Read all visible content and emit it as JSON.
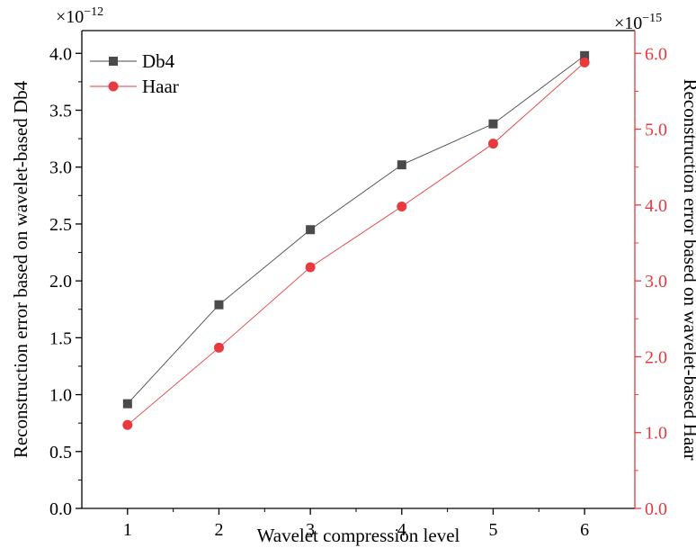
{
  "chart_data": {
    "type": "line",
    "x": [
      1,
      2,
      3,
      4,
      5,
      6
    ],
    "xlabel": "Wavelet compression level",
    "ylabel_left": "Reconstruction error based on wavelet-based Db4",
    "ylabel_right": "Reconstruction error based on wavelet-based Haar",
    "left_axis": {
      "multiplier_base": "×10",
      "multiplier_exp": "−12",
      "ylim": [
        0,
        4.2
      ],
      "ticks": [
        "0.0",
        "0.5",
        "1.0",
        "1.5",
        "2.0",
        "2.5",
        "3.0",
        "3.5",
        "4.0"
      ],
      "tick_values": [
        0,
        0.5,
        1.0,
        1.5,
        2.0,
        2.5,
        3.0,
        3.5,
        4.0
      ]
    },
    "right_axis": {
      "multiplier_base": "×10",
      "multiplier_exp": "−15",
      "ylim": [
        0,
        6.3
      ],
      "ticks": [
        "0.0",
        "1.0",
        "2.0",
        "3.0",
        "4.0",
        "5.0",
        "6.0"
      ],
      "tick_values": [
        0,
        1.0,
        2.0,
        3.0,
        4.0,
        5.0,
        6.0
      ],
      "color": "#e8393e"
    },
    "xlim": [
      0.5,
      6.55
    ],
    "x_ticks": [
      "1",
      "2",
      "3",
      "4",
      "5",
      "6"
    ],
    "series": [
      {
        "name": "Db4",
        "axis": "left",
        "values": [
          0.92,
          1.79,
          2.45,
          3.02,
          3.38,
          3.98
        ],
        "color": "#4a4a4a",
        "marker": "square"
      },
      {
        "name": "Haar",
        "axis": "right",
        "values": [
          1.1,
          2.12,
          3.18,
          3.98,
          4.81,
          5.88
        ],
        "color": "#e8393e",
        "marker": "circle"
      }
    ],
    "legend_position": "top-left",
    "grid": false
  }
}
